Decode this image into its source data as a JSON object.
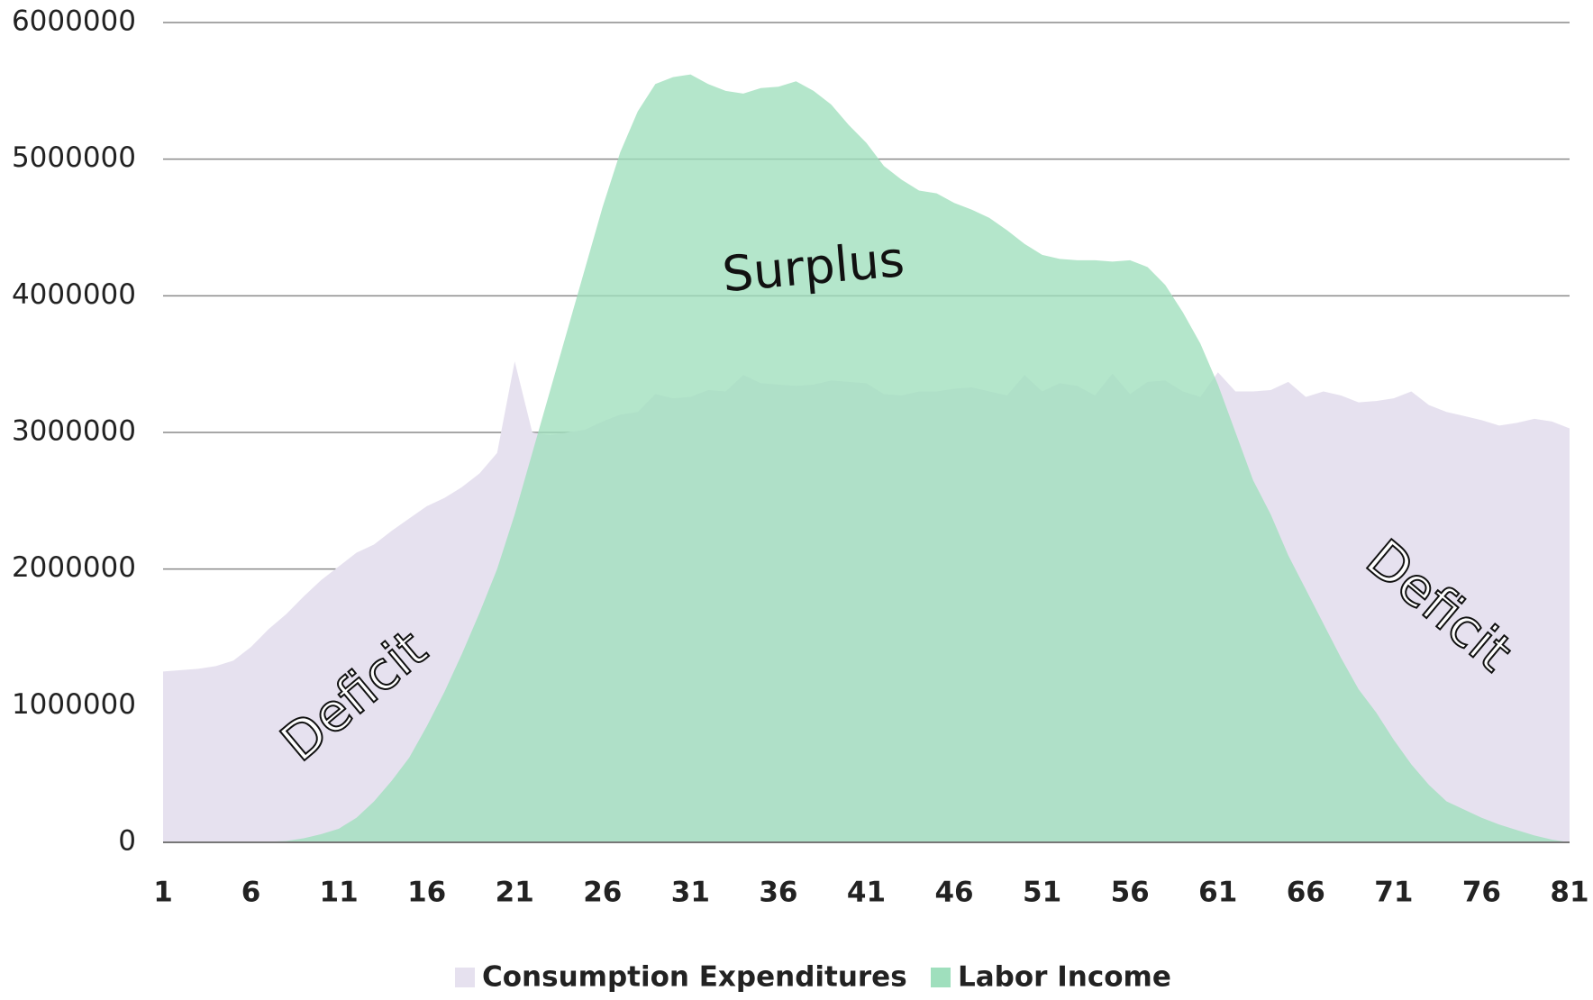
{
  "chart_data": {
    "type": "area",
    "x": [
      1,
      2,
      3,
      4,
      5,
      6,
      7,
      8,
      9,
      10,
      11,
      12,
      13,
      14,
      15,
      16,
      17,
      18,
      19,
      20,
      21,
      22,
      23,
      24,
      25,
      26,
      27,
      28,
      29,
      30,
      31,
      32,
      33,
      34,
      35,
      36,
      37,
      38,
      39,
      40,
      41,
      42,
      43,
      44,
      45,
      46,
      47,
      48,
      49,
      50,
      51,
      52,
      53,
      54,
      55,
      56,
      57,
      58,
      59,
      60,
      61,
      62,
      63,
      64,
      65,
      66,
      67,
      68,
      69,
      70,
      71,
      72,
      73,
      74,
      75,
      76,
      77,
      78,
      79,
      80,
      81
    ],
    "xlim": [
      1,
      81
    ],
    "xticks": [
      1,
      6,
      11,
      16,
      21,
      26,
      31,
      36,
      41,
      46,
      51,
      56,
      61,
      66,
      71,
      76,
      81
    ],
    "ylim": [
      0,
      6000000
    ],
    "yticks": [
      0,
      1000000,
      2000000,
      3000000,
      4000000,
      5000000,
      6000000
    ],
    "grid": true,
    "legend": "bottom",
    "series": [
      {
        "name": "Consumption Expenditures",
        "color": "#e6e1ef",
        "values": [
          1250000,
          1260000,
          1270000,
          1290000,
          1330000,
          1430000,
          1560000,
          1670000,
          1800000,
          1920000,
          2020000,
          2120000,
          2180000,
          2280000,
          2370000,
          2460000,
          2520000,
          2600000,
          2700000,
          2850000,
          3520000,
          3000000,
          2980000,
          3000000,
          3020000,
          3080000,
          3130000,
          3150000,
          3280000,
          3250000,
          3260000,
          3310000,
          3300000,
          3420000,
          3360000,
          3350000,
          3340000,
          3350000,
          3380000,
          3370000,
          3360000,
          3280000,
          3270000,
          3300000,
          3300000,
          3320000,
          3330000,
          3300000,
          3270000,
          3420000,
          3300000,
          3360000,
          3340000,
          3270000,
          3430000,
          3280000,
          3370000,
          3380000,
          3300000,
          3260000,
          3440000,
          3300000,
          3300000,
          3310000,
          3370000,
          3260000,
          3300000,
          3270000,
          3220000,
          3230000,
          3250000,
          3300000,
          3200000,
          3150000,
          3120000,
          3090000,
          3050000,
          3070000,
          3100000,
          3080000,
          3030000
        ]
      },
      {
        "name": "Labor Income",
        "color": "#9fdfbd",
        "values": [
          0,
          0,
          0,
          0,
          0,
          0,
          5000,
          10000,
          30000,
          60000,
          100000,
          180000,
          300000,
          450000,
          620000,
          850000,
          1100000,
          1380000,
          1680000,
          2000000,
          2400000,
          2850000,
          3300000,
          3750000,
          4200000,
          4650000,
          5050000,
          5350000,
          5550000,
          5600000,
          5620000,
          5550000,
          5500000,
          5480000,
          5520000,
          5530000,
          5570000,
          5500000,
          5400000,
          5250000,
          5120000,
          4950000,
          4850000,
          4770000,
          4750000,
          4680000,
          4630000,
          4570000,
          4480000,
          4380000,
          4300000,
          4270000,
          4260000,
          4260000,
          4250000,
          4260000,
          4210000,
          4080000,
          3880000,
          3650000,
          3350000,
          3000000,
          2650000,
          2400000,
          2100000,
          1850000,
          1600000,
          1350000,
          1120000,
          950000,
          750000,
          570000,
          420000,
          300000,
          240000,
          180000,
          130000,
          90000,
          50000,
          20000,
          0
        ]
      }
    ],
    "annotations": [
      "Surplus",
      "Deficit",
      "Deficit"
    ]
  }
}
